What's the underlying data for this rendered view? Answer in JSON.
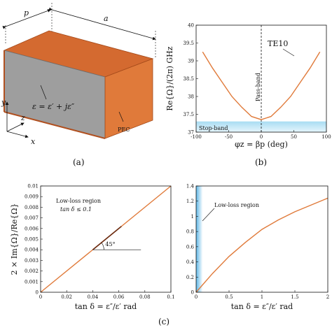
{
  "panel_a": {
    "caption": "(a)",
    "label_p": "p",
    "label_a": "a",
    "axis_y": "y",
    "axis_z": "z",
    "axis_x": "x",
    "epsilon_eq": "ε = ε′ + jε″",
    "pec_label": "PEC"
  },
  "panel_b": {
    "caption": "(b)",
    "passband_label": "Pass-band",
    "stopband_label": "Stop-band",
    "mode_label": "TE10"
  },
  "panel_c": {
    "caption": "(c)",
    "left_annotation": "Low-loss region",
    "left_condition": "tan δ ≤ 0.1",
    "angle_label": "45°",
    "right_annotation": "Low-loss region"
  },
  "chart_data": [
    {
      "type": "line",
      "panel": "(b)",
      "xlabel": "φz = βp (deg)",
      "ylabel": "Re{Ω}/(2π) GHz",
      "xlim": [
        -100,
        100
      ],
      "ylim": [
        37,
        40
      ],
      "xticks": [
        -100,
        -50,
        0,
        50,
        100
      ],
      "yticks": [
        37,
        37.5,
        38,
        38.5,
        39,
        39.5,
        40
      ],
      "series": [
        {
          "name": "TE10",
          "x": [
            -90,
            -75,
            -60,
            -45,
            -30,
            -15,
            0,
            15,
            30,
            45,
            60,
            75,
            90
          ],
          "y": [
            39.25,
            38.8,
            38.4,
            38.0,
            37.7,
            37.44,
            37.35,
            37.44,
            37.7,
            38.0,
            38.4,
            38.8,
            39.25
          ],
          "color": "#e07a3a"
        }
      ],
      "stop_band": [
        37,
        37.3
      ],
      "pass_band_line_x": 0
    },
    {
      "type": "line",
      "panel": "(c) left",
      "xlabel": "tan δ = ε″/ε′ rad",
      "ylabel": "2 × Im{Ω}/Re{Ω}",
      "xlim": [
        0,
        0.1
      ],
      "ylim": [
        0,
        0.01
      ],
      "xticks": [
        0,
        0.02,
        0.04,
        0.06,
        0.08,
        0.1
      ],
      "yticks": [
        0,
        0.001,
        0.002,
        0.003,
        0.004,
        0.005,
        0.006,
        0.007,
        0.008,
        0.009,
        0.01
      ],
      "series": [
        {
          "x": [
            0,
            0.1
          ],
          "y": [
            0,
            0.01
          ],
          "color": "#e07a3a"
        }
      ]
    },
    {
      "type": "line",
      "panel": "(c) right",
      "xlabel": "tan δ = ε″/ε′ rad",
      "xlim": [
        0,
        2
      ],
      "ylim": [
        0,
        1.4
      ],
      "xticks": [
        0,
        0.5,
        1,
        1.5,
        2
      ],
      "yticks": [
        0,
        0.2,
        0.4,
        0.6,
        0.8,
        1,
        1.2,
        1.4
      ],
      "series": [
        {
          "x": [
            0,
            0.25,
            0.5,
            0.75,
            1.0,
            1.25,
            1.5,
            1.75,
            2.0
          ],
          "y": [
            0,
            0.248,
            0.472,
            0.658,
            0.828,
            0.953,
            1.06,
            1.15,
            1.24
          ],
          "color": "#e07a3a"
        }
      ],
      "low_loss_band": [
        0,
        0.1
      ]
    }
  ]
}
